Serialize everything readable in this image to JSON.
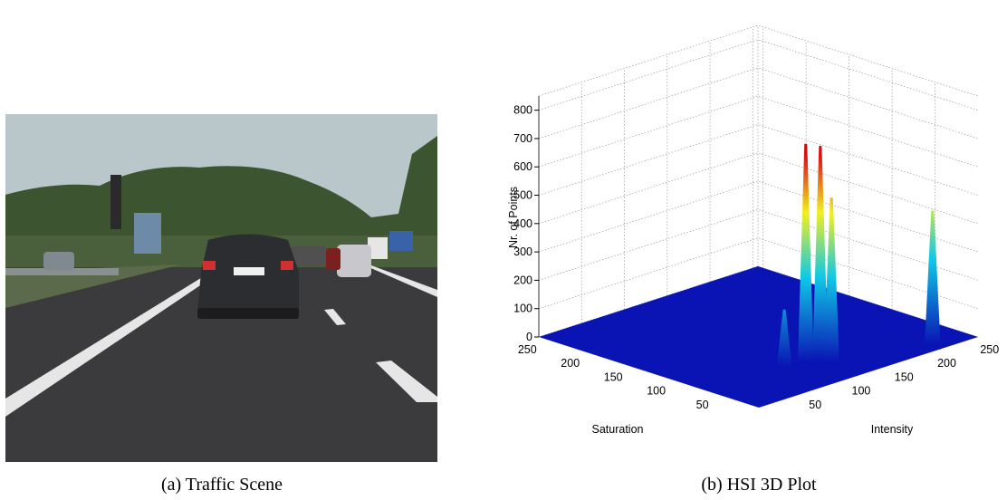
{
  "figure": {
    "captions": [
      "(a) Traffic Scene",
      "(b) HSI 3D Plot"
    ]
  },
  "chart_data": {
    "type": "surface3d",
    "xlabel": "Saturation",
    "ylabel": "Intensity",
    "zlabel": "Nr. of Points",
    "xlim": [
      0,
      256
    ],
    "ylim": [
      0,
      256
    ],
    "zlim": [
      0,
      850
    ],
    "xticks": [
      50,
      100,
      150,
      200,
      250
    ],
    "yticks": [
      50,
      100,
      150,
      200,
      250
    ],
    "zticks": [
      0,
      100,
      200,
      300,
      400,
      500,
      600,
      700,
      800
    ],
    "grid": true,
    "floor_color": "#0a14b4",
    "peaks": [
      {
        "saturation": 55,
        "intensity": 110,
        "count": 770
      },
      {
        "saturation": 48,
        "intensity": 120,
        "count": 760
      },
      {
        "saturation": 40,
        "intensity": 125,
        "count": 580
      },
      {
        "saturation": 14,
        "intensity": 217,
        "count": 470
      },
      {
        "saturation": 60,
        "intensity": 90,
        "count": 200
      }
    ]
  }
}
